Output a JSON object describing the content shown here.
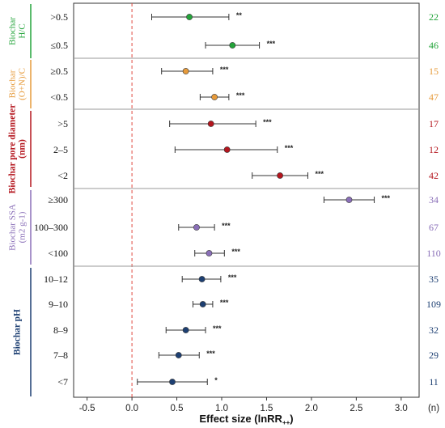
{
  "chart_data": {
    "type": "scatter",
    "subtype": "forest-plot",
    "xlabel": "Effect size (lnRR",
    "xlabel_sub": "++",
    "xlabel_close": ")",
    "n_label": "(n)",
    "xlim": [
      -0.65,
      3.2
    ],
    "xticks": [
      -0.5,
      0.0,
      0.5,
      1.0,
      1.5,
      2.0,
      2.5,
      3.0
    ],
    "xtick_labels": [
      "-0.5",
      "0.0",
      "0.5",
      "1.0",
      "1.5",
      "2.0",
      "2.5",
      "3.0"
    ],
    "reference_line": 0,
    "groups": [
      {
        "label_lines": [
          "Biochar",
          "H/C"
        ],
        "color": "#23a43a",
        "rows": [
          {
            "category": ">0.5",
            "mean": 0.64,
            "low": 0.22,
            "high": 1.08,
            "sig": "**",
            "n": "22"
          },
          {
            "category": "≤0.5",
            "mean": 1.12,
            "low": 0.82,
            "high": 1.42,
            "sig": "***",
            "n": "46"
          }
        ]
      },
      {
        "label_lines": [
          "Biochar",
          "(O+N)/C"
        ],
        "color": "#e69a3a",
        "rows": [
          {
            "category": "≥0.5",
            "mean": 0.6,
            "low": 0.33,
            "high": 0.9,
            "sig": "***",
            "n": "15"
          },
          {
            "category": "<0.5",
            "mean": 0.92,
            "low": 0.76,
            "high": 1.08,
            "sig": "***",
            "n": "47"
          }
        ]
      },
      {
        "label_lines": [
          "Biochar pore diameter",
          "(nm)"
        ],
        "color": "#b4161e",
        "rows": [
          {
            "category": ">5",
            "mean": 0.88,
            "low": 0.42,
            "high": 1.38,
            "sig": "***",
            "n": "17"
          },
          {
            "category": "2–5",
            "mean": 1.06,
            "low": 0.48,
            "high": 1.62,
            "sig": "***",
            "n": "12"
          },
          {
            "category": "<2",
            "mean": 1.65,
            "low": 1.34,
            "high": 1.96,
            "sig": "***",
            "n": "42"
          }
        ]
      },
      {
        "label_lines": [
          "Biochar SSA",
          "(m2 g-1)"
        ],
        "color": "#8a6fb8",
        "rows": [
          {
            "category": "≥300",
            "mean": 2.42,
            "low": 2.14,
            "high": 2.7,
            "sig": "***",
            "n": "34"
          },
          {
            "category": "100–300",
            "mean": 0.72,
            "low": 0.52,
            "high": 0.92,
            "sig": "***",
            "n": "67"
          },
          {
            "category": "<100",
            "mean": 0.86,
            "low": 0.7,
            "high": 1.03,
            "sig": "***",
            "n": "110"
          }
        ]
      },
      {
        "label_lines": [
          "Biochar pH"
        ],
        "color": "#1d3f72",
        "rows": [
          {
            "category": "10–12",
            "mean": 0.78,
            "low": 0.56,
            "high": 0.99,
            "sig": "***",
            "n": "35"
          },
          {
            "category": "9–10",
            "mean": 0.79,
            "low": 0.68,
            "high": 0.9,
            "sig": "***",
            "n": "109"
          },
          {
            "category": "8–9",
            "mean": 0.6,
            "low": 0.38,
            "high": 0.82,
            "sig": "***",
            "n": "32"
          },
          {
            "category": "7–8",
            "mean": 0.52,
            "low": 0.3,
            "high": 0.75,
            "sig": "***",
            "n": "29"
          },
          {
            "category": "<7",
            "mean": 0.45,
            "low": 0.06,
            "high": 0.84,
            "sig": "*",
            "n": "11"
          }
        ]
      }
    ]
  }
}
